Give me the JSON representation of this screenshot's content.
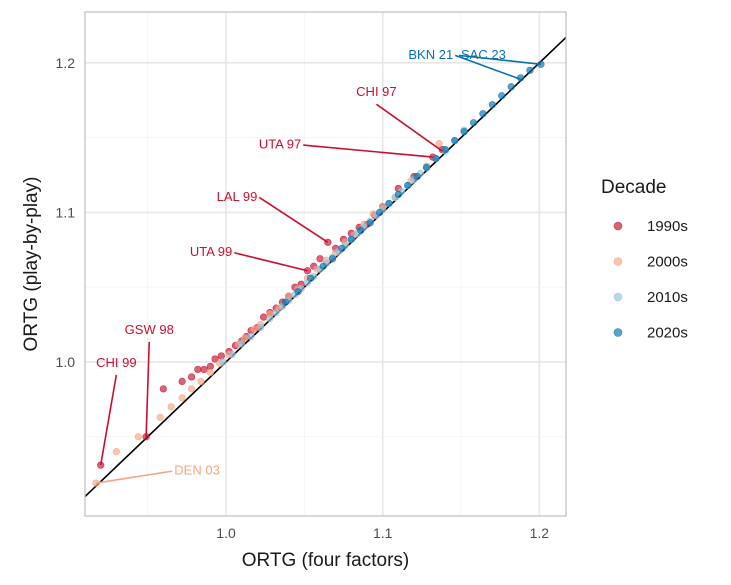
{
  "chart_data": {
    "type": "scatter",
    "title": "",
    "xlabel": "ORTG (four factors)",
    "ylabel": "ORTG (play-by-play)",
    "xlim": [
      0.91,
      1.217
    ],
    "ylim": [
      0.897,
      1.234
    ],
    "x_ticks": [
      1.0,
      1.1,
      1.2
    ],
    "y_ticks": [
      1.0,
      1.1,
      1.2
    ],
    "x_tick_labels": [
      "1.0",
      "1.1",
      "1.2"
    ],
    "y_tick_labels": [
      "1.0",
      "1.1",
      "1.2"
    ],
    "grid": true,
    "reference_line": "y = x",
    "legend": {
      "title": "Decade",
      "position": "right",
      "entries": [
        {
          "label": "1990s",
          "color": "#c8102e"
        },
        {
          "label": "2000s",
          "color": "#f4a582"
        },
        {
          "label": "2010s",
          "color": "#92c5de"
        },
        {
          "label": "2020s",
          "color": "#0571b0"
        }
      ]
    },
    "series": [
      {
        "name": "1990s",
        "color": "#c8102e",
        "points": [
          [
            0.92,
            0.931
          ],
          [
            0.949,
            0.95
          ],
          [
            0.96,
            0.982
          ],
          [
            0.972,
            0.987
          ],
          [
            0.978,
            0.99
          ],
          [
            0.982,
            0.995
          ],
          [
            0.986,
            0.995
          ],
          [
            0.99,
            0.997
          ],
          [
            0.993,
            1.002
          ],
          [
            0.997,
            1.004
          ],
          [
            1.002,
            1.007
          ],
          [
            1.006,
            1.011
          ],
          [
            1.01,
            1.014
          ],
          [
            1.013,
            1.017
          ],
          [
            1.016,
            1.021
          ],
          [
            1.02,
            1.023
          ],
          [
            1.024,
            1.03
          ],
          [
            1.028,
            1.033
          ],
          [
            1.032,
            1.036
          ],
          [
            1.036,
            1.04
          ],
          [
            1.04,
            1.044
          ],
          [
            1.044,
            1.05
          ],
          [
            1.048,
            1.052
          ],
          [
            1.052,
            1.061
          ],
          [
            1.056,
            1.064
          ],
          [
            1.06,
            1.069
          ],
          [
            1.065,
            1.08
          ],
          [
            1.07,
            1.076
          ],
          [
            1.075,
            1.082
          ],
          [
            1.08,
            1.086
          ],
          [
            1.085,
            1.09
          ],
          [
            1.09,
            1.092
          ],
          [
            1.095,
            1.098
          ],
          [
            1.1,
            1.104
          ],
          [
            1.11,
            1.116
          ],
          [
            1.12,
            1.124
          ],
          [
            1.132,
            1.137
          ],
          [
            1.138,
            1.142
          ]
        ]
      },
      {
        "name": "2000s",
        "color": "#f4a582",
        "points": [
          [
            0.917,
            0.919
          ],
          [
            0.93,
            0.94
          ],
          [
            0.944,
            0.95
          ],
          [
            0.958,
            0.963
          ],
          [
            0.965,
            0.97
          ],
          [
            0.972,
            0.976
          ],
          [
            0.978,
            0.982
          ],
          [
            0.984,
            0.987
          ],
          [
            0.99,
            0.993
          ],
          [
            0.996,
            0.999
          ],
          [
            1.002,
            1.005
          ],
          [
            1.008,
            1.012
          ],
          [
            1.012,
            1.016
          ],
          [
            1.018,
            1.022
          ],
          [
            1.022,
            1.025
          ],
          [
            1.028,
            1.032
          ],
          [
            1.034,
            1.036
          ],
          [
            1.04,
            1.044
          ],
          [
            1.046,
            1.049
          ],
          [
            1.052,
            1.056
          ],
          [
            1.058,
            1.062
          ],
          [
            1.064,
            1.068
          ],
          [
            1.07,
            1.073
          ],
          [
            1.076,
            1.08
          ],
          [
            1.082,
            1.085
          ],
          [
            1.088,
            1.092
          ],
          [
            1.094,
            1.099
          ],
          [
            1.1,
            1.104
          ],
          [
            1.108,
            1.11
          ],
          [
            1.118,
            1.121
          ],
          [
            1.128,
            1.131
          ],
          [
            1.136,
            1.146
          ]
        ]
      },
      {
        "name": "2010s",
        "color": "#92c5de",
        "points": [
          [
            0.998,
            1.0
          ],
          [
            1.004,
            1.005
          ],
          [
            1.01,
            1.012
          ],
          [
            1.016,
            1.017
          ],
          [
            1.022,
            1.023
          ],
          [
            1.028,
            1.029
          ],
          [
            1.032,
            1.033
          ],
          [
            1.036,
            1.037
          ],
          [
            1.04,
            1.041
          ],
          [
            1.044,
            1.045
          ],
          [
            1.048,
            1.049
          ],
          [
            1.052,
            1.053
          ],
          [
            1.056,
            1.057
          ],
          [
            1.06,
            1.062
          ],
          [
            1.064,
            1.066
          ],
          [
            1.068,
            1.07
          ],
          [
            1.072,
            1.074
          ],
          [
            1.076,
            1.078
          ],
          [
            1.08,
            1.082
          ],
          [
            1.084,
            1.086
          ],
          [
            1.088,
            1.09
          ],
          [
            1.092,
            1.094
          ],
          [
            1.096,
            1.098
          ],
          [
            1.1,
            1.102
          ],
          [
            1.104,
            1.106
          ],
          [
            1.108,
            1.11
          ],
          [
            1.112,
            1.114
          ],
          [
            1.116,
            1.118
          ],
          [
            1.12,
            1.122
          ],
          [
            1.124,
            1.126
          ],
          [
            1.128,
            1.13
          ],
          [
            1.134,
            1.136
          ],
          [
            1.14,
            1.141
          ],
          [
            1.146,
            1.148
          ],
          [
            1.152,
            1.155
          ]
        ]
      },
      {
        "name": "2020s",
        "color": "#0571b0",
        "points": [
          [
            1.038,
            1.04
          ],
          [
            1.046,
            1.047
          ],
          [
            1.054,
            1.056
          ],
          [
            1.062,
            1.064
          ],
          [
            1.068,
            1.069
          ],
          [
            1.074,
            1.076
          ],
          [
            1.08,
            1.082
          ],
          [
            1.086,
            1.088
          ],
          [
            1.092,
            1.093
          ],
          [
            1.098,
            1.1
          ],
          [
            1.104,
            1.106
          ],
          [
            1.11,
            1.112
          ],
          [
            1.116,
            1.118
          ],
          [
            1.122,
            1.124
          ],
          [
            1.128,
            1.13
          ],
          [
            1.134,
            1.136
          ],
          [
            1.14,
            1.142
          ],
          [
            1.146,
            1.148
          ],
          [
            1.152,
            1.154
          ],
          [
            1.158,
            1.16
          ],
          [
            1.164,
            1.166
          ],
          [
            1.17,
            1.172
          ],
          [
            1.176,
            1.178
          ],
          [
            1.182,
            1.184
          ],
          [
            1.188,
            1.19
          ],
          [
            1.194,
            1.195
          ],
          [
            1.201,
            1.199
          ]
        ]
      }
    ],
    "annotations": [
      {
        "label": "BKN 21",
        "x": 1.188,
        "y": 1.189,
        "color": "#0571b0",
        "anchor": "end",
        "label_x": 1.145,
        "label_y": 1.205
      },
      {
        "label": "SAC 23",
        "x": 1.201,
        "y": 1.199,
        "color": "#0571b0",
        "anchor": "start",
        "label_x": 1.15,
        "label_y": 1.205
      },
      {
        "label": "CHI 97",
        "x": 1.138,
        "y": 1.141,
        "color": "#c8102e",
        "anchor": "middle",
        "label_x": 1.096,
        "label_y": 1.175
      },
      {
        "label": "UTA 97",
        "x": 1.132,
        "y": 1.137,
        "color": "#c8102e",
        "anchor": "end",
        "label_x": 1.048,
        "label_y": 1.145
      },
      {
        "label": "LAL 99",
        "x": 1.065,
        "y": 1.08,
        "color": "#c8102e",
        "anchor": "end",
        "label_x": 1.02,
        "label_y": 1.11
      },
      {
        "label": "UTA 99",
        "x": 1.052,
        "y": 1.061,
        "color": "#c8102e",
        "anchor": "end",
        "label_x": 1.004,
        "label_y": 1.073
      },
      {
        "label": "GSW 98",
        "x": 0.949,
        "y": 0.95,
        "color": "#c8102e",
        "anchor": "middle",
        "label_x": 0.951,
        "label_y": 1.016
      },
      {
        "label": "CHI 99",
        "x": 0.92,
        "y": 0.931,
        "color": "#c8102e",
        "anchor": "middle",
        "label_x": 0.93,
        "label_y": 0.994
      },
      {
        "label": "DEN 03",
        "x": 0.917,
        "y": 0.919,
        "color": "#f4a582",
        "anchor": "start",
        "label_x": 0.967,
        "label_y": 0.927
      }
    ]
  }
}
